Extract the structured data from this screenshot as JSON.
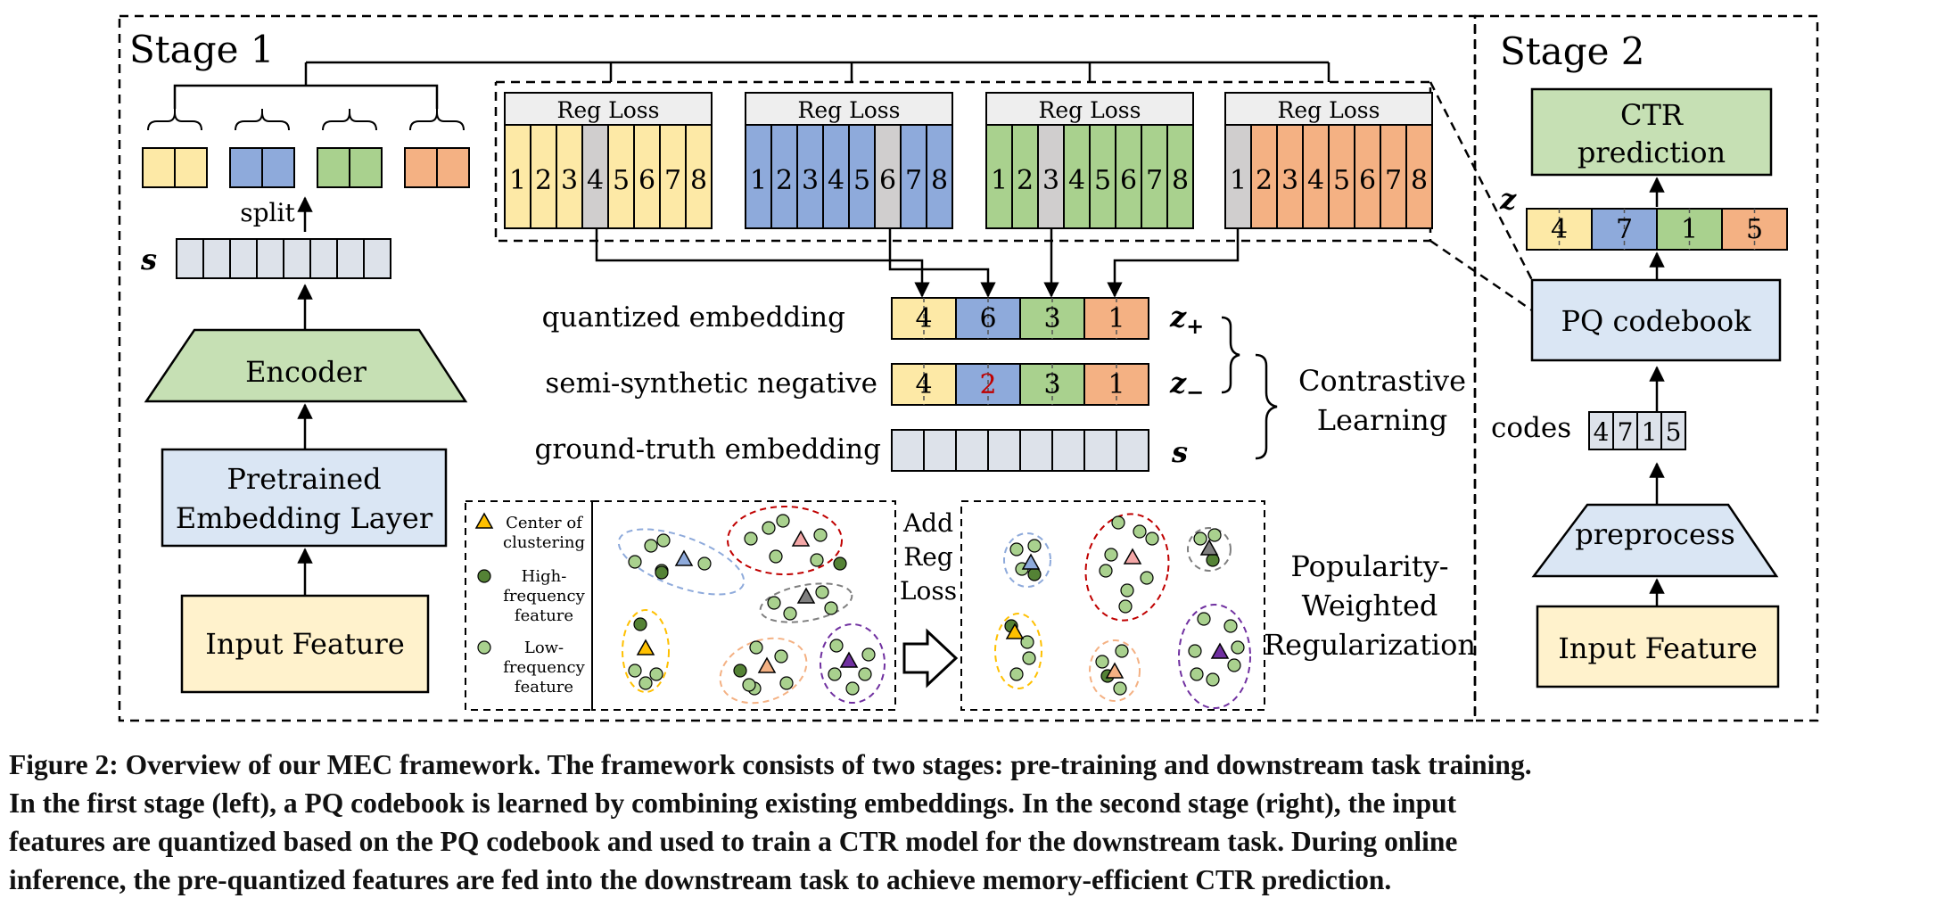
{
  "colors": {
    "yellow": "#fde9a6",
    "blue": "#8eaadb",
    "green": "#a9d18e",
    "orange": "#f4b183",
    "gray": "#d0cece",
    "light_gray": "#dde2ea",
    "light_blue": "#dae6f4",
    "light_green": "#c6e0b4",
    "cream": "#fff2cc",
    "red_text": "#c00000"
  },
  "stage1": {
    "title": "Stage 1",
    "split_label": "split",
    "s_label": "s",
    "encoder": "Encoder",
    "pretrained": [
      "Pretrained",
      "Embedding Layer"
    ],
    "input_feature": "Input Feature",
    "reg_loss": "Reg Loss",
    "codebook_digits": [
      "1",
      "2",
      "3",
      "4",
      "5",
      "6",
      "7",
      "8"
    ],
    "quantized_label": "quantized embedding",
    "quantized_values": [
      "4",
      "6",
      "3",
      "1"
    ],
    "semi_label": "semi-synthetic negative",
    "semi_values": [
      "4",
      "2",
      "3",
      "1"
    ],
    "ground_label": "ground-truth embedding",
    "z_plus": "z",
    "z_plus_sub": "+",
    "z_minus": "z",
    "z_minus_sub": "−",
    "s_right": "s",
    "contrastive": [
      "Contrastive",
      "Learning"
    ],
    "legend": {
      "center": [
        "Center of",
        "clustering"
      ],
      "high": [
        "High-",
        "frequency",
        "feature"
      ],
      "low": [
        "Low-",
        "frequency",
        "feature"
      ]
    },
    "add_reg": [
      "Add",
      "Reg",
      "Loss"
    ],
    "popularity": [
      "Popularity-",
      "Weighted",
      "Regularization"
    ]
  },
  "stage2": {
    "title": "Stage 2",
    "ctr": [
      "CTR",
      "prediction"
    ],
    "z_label": "z",
    "z_values": [
      "4",
      "7",
      "1",
      "5"
    ],
    "pq_codebook": "PQ codebook",
    "codes_label": "codes",
    "codes_values": [
      "4",
      "7",
      "1",
      "5"
    ],
    "preprocess": "preprocess",
    "input_feature": "Input Feature"
  },
  "caption": [
    "Figure 2: Overview of our MEC framework. The framework consists of two stages: pre-training and downstream task training.",
    "In the first stage (left), a PQ codebook is learned by combining existing embeddings. In the second stage (right), the input",
    "features are quantized based on the PQ codebook and used to train a CTR model for the downstream task. During online",
    "inference, the pre-quantized features are fed into the downstream task to achieve memory-efficient CTR prediction."
  ]
}
